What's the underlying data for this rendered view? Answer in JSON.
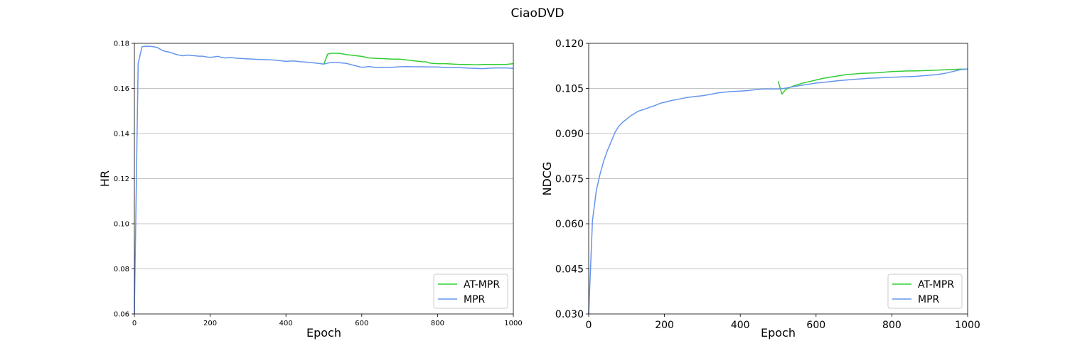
{
  "figure": {
    "suptitle": "CiaoDVD"
  },
  "chart_data": [
    {
      "type": "line",
      "title": "",
      "xlabel": "Epoch",
      "ylabel": "HR",
      "xlim": [
        0,
        1000
      ],
      "ylim": [
        0.06,
        0.18
      ],
      "xticks": [
        "0",
        "200",
        "400",
        "600",
        "800",
        "1000"
      ],
      "yticks": [
        "0.06",
        "0.08",
        "0.10",
        "0.12",
        "0.14",
        "0.16",
        "0.18"
      ],
      "grid": "horizontal",
      "legend_position": "lower right",
      "series": [
        {
          "name": "AT-MPR",
          "color": "#32cd32",
          "x": [
            500,
            510,
            520,
            540,
            560,
            580,
            600,
            620,
            640,
            660,
            680,
            700,
            720,
            740,
            760,
            770,
            780,
            800,
            820,
            840,
            860,
            880,
            900,
            920,
            940,
            960,
            980,
            1000
          ],
          "y": [
            0.1708,
            0.1752,
            0.1756,
            0.1756,
            0.175,
            0.1746,
            0.1742,
            0.1735,
            0.1733,
            0.1732,
            0.173,
            0.173,
            0.1726,
            0.1722,
            0.1718,
            0.1718,
            0.1712,
            0.171,
            0.171,
            0.1708,
            0.1706,
            0.1706,
            0.1705,
            0.1706,
            0.1706,
            0.1706,
            0.1706,
            0.171
          ]
        },
        {
          "name": "MPR",
          "color": "#6495ed",
          "x": [
            0,
            10,
            20,
            30,
            40,
            50,
            60,
            70,
            80,
            90,
            100,
            110,
            120,
            130,
            140,
            150,
            160,
            170,
            180,
            190,
            200,
            210,
            220,
            230,
            240,
            250,
            260,
            270,
            280,
            290,
            300,
            320,
            340,
            360,
            380,
            400,
            420,
            440,
            460,
            480,
            500,
            520,
            540,
            560,
            580,
            600,
            620,
            640,
            660,
            680,
            700,
            720,
            740,
            760,
            780,
            800,
            820,
            840,
            860,
            880,
            900,
            920,
            940,
            960,
            980,
            1000
          ],
          "y": [
            0.06,
            0.171,
            0.1785,
            0.1787,
            0.1787,
            0.1785,
            0.1782,
            0.1772,
            0.1765,
            0.1762,
            0.1757,
            0.1751,
            0.1747,
            0.1745,
            0.1748,
            0.1746,
            0.1745,
            0.1743,
            0.1743,
            0.174,
            0.1738,
            0.174,
            0.1742,
            0.1738,
            0.1735,
            0.1737,
            0.1736,
            0.1734,
            0.1733,
            0.1732,
            0.1731,
            0.1729,
            0.1728,
            0.1727,
            0.1724,
            0.172,
            0.1722,
            0.1718,
            0.1716,
            0.1712,
            0.1708,
            0.1716,
            0.1714,
            0.1711,
            0.1702,
            0.1694,
            0.1697,
            0.1692,
            0.1694,
            0.1694,
            0.1696,
            0.1697,
            0.1696,
            0.1696,
            0.1695,
            0.1695,
            0.1693,
            0.1693,
            0.1692,
            0.169,
            0.1689,
            0.1688,
            0.169,
            0.1691,
            0.1691,
            0.1689
          ]
        }
      ]
    },
    {
      "type": "line",
      "title": "",
      "xlabel": "Epoch",
      "ylabel": "NDCG",
      "xlim": [
        0,
        1000
      ],
      "ylim": [
        0.03,
        0.12
      ],
      "xticks": [
        "0",
        "200",
        "400",
        "600",
        "800",
        "1000"
      ],
      "yticks": [
        "0.030",
        "0.045",
        "0.060",
        "0.075",
        "0.090",
        "0.105",
        "0.120"
      ],
      "grid": "horizontal",
      "legend_position": "lower right",
      "series": [
        {
          "name": "AT-MPR",
          "color": "#32cd32",
          "x": [
            500,
            510,
            520,
            540,
            560,
            580,
            600,
            620,
            640,
            660,
            680,
            700,
            720,
            740,
            760,
            780,
            800,
            820,
            840,
            860,
            880,
            900,
            920,
            940,
            960,
            980,
            1000
          ],
          "y": [
            0.1074,
            0.1031,
            0.1047,
            0.1058,
            0.1066,
            0.1072,
            0.1078,
            0.1084,
            0.1088,
            0.1092,
            0.1096,
            0.1098,
            0.11,
            0.1101,
            0.1102,
            0.1104,
            0.1106,
            0.1107,
            0.1108,
            0.1108,
            0.1109,
            0.111,
            0.1111,
            0.1112,
            0.1113,
            0.1114,
            0.1114
          ]
        },
        {
          "name": "MPR",
          "color": "#6495ed",
          "x": [
            0,
            10,
            20,
            30,
            40,
            50,
            60,
            70,
            80,
            90,
            100,
            110,
            120,
            130,
            140,
            150,
            160,
            170,
            180,
            190,
            200,
            220,
            240,
            260,
            280,
            300,
            320,
            340,
            360,
            380,
            400,
            420,
            440,
            460,
            480,
            500,
            520,
            540,
            560,
            580,
            600,
            620,
            640,
            660,
            680,
            700,
            720,
            740,
            760,
            780,
            800,
            820,
            840,
            860,
            880,
            900,
            920,
            940,
            960,
            980,
            1000
          ],
          "y": [
            0.03,
            0.061,
            0.071,
            0.0765,
            0.081,
            0.0845,
            0.0875,
            0.0905,
            0.0925,
            0.0938,
            0.0948,
            0.0958,
            0.0966,
            0.0974,
            0.0978,
            0.0982,
            0.0987,
            0.0991,
            0.0996,
            0.1001,
            0.1004,
            0.101,
            0.1015,
            0.102,
            0.1023,
            0.1026,
            0.103,
            0.1035,
            0.1038,
            0.104,
            0.1041,
            0.1043,
            0.1046,
            0.1048,
            0.1048,
            0.1048,
            0.1051,
            0.1056,
            0.106,
            0.1064,
            0.1068,
            0.107,
            0.1073,
            0.1076,
            0.1078,
            0.108,
            0.1082,
            0.1084,
            0.1085,
            0.1086,
            0.1087,
            0.1088,
            0.1089,
            0.109,
            0.1092,
            0.1094,
            0.1096,
            0.11,
            0.1106,
            0.1112,
            0.1115
          ]
        }
      ]
    }
  ]
}
